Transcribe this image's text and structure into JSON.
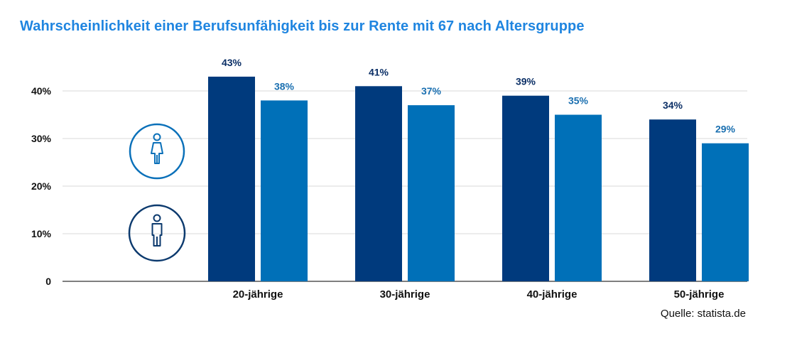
{
  "title": "Wahrscheinlichkeit einer Berufsunfähigkeit bis zur Rente mit 67 nach Altersgruppe",
  "source": "Quelle: statista.de",
  "legend": [
    {
      "icon": "woman-icon",
      "color": "#0a70b9"
    },
    {
      "icon": "man-icon",
      "color": "#0c3a6e"
    }
  ],
  "chart_data": {
    "type": "bar",
    "categories": [
      "20-jährige",
      "30-jährige",
      "40-jährige",
      "50-jährige"
    ],
    "series": [
      {
        "values": [
          43,
          41,
          39,
          34
        ],
        "color": "#003a7d",
        "label_color": "#0b2f66"
      },
      {
        "values": [
          38,
          37,
          35,
          29
        ],
        "color": "#0070b8",
        "label_color": "#1a6fb0"
      }
    ],
    "value_labels_suffix": "%",
    "ylim": [
      0,
      40
    ],
    "yticks": [
      0,
      10,
      20,
      30,
      40
    ],
    "ytick_labels": [
      "0",
      "10%",
      "20%",
      "30%",
      "40%"
    ],
    "grid": true
  }
}
